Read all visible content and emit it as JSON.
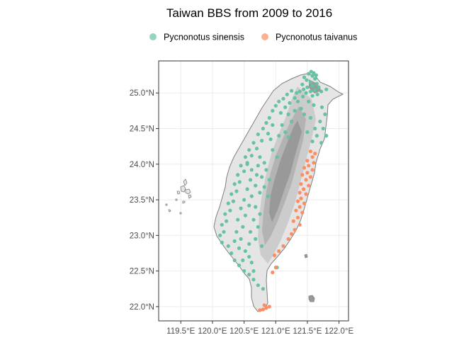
{
  "chart_data": {
    "type": "scatter",
    "title": "Taiwan BBS from 2009 to 2016",
    "xlabel": "",
    "ylabel": "",
    "xlim": [
      119.15,
      122.15
    ],
    "ylim": [
      21.8,
      25.45
    ],
    "x_ticks": [
      119.5,
      120.0,
      120.5,
      121.0,
      121.5,
      122.0
    ],
    "x_tick_labels": [
      "119.5°E",
      "120.0°E",
      "120.5°E",
      "121.0°E",
      "121.5°E",
      "122.0°E"
    ],
    "y_ticks": [
      22.0,
      22.5,
      23.0,
      23.5,
      24.0,
      24.5,
      25.0
    ],
    "y_tick_labels": [
      "22.0°N",
      "22.5°N",
      "23.0°N",
      "23.5°N",
      "24.0°N",
      "24.5°N",
      "25.0°N"
    ],
    "grid": true,
    "legend_position": "top",
    "series": [
      {
        "name": "Pycnonotus sinensis",
        "color": "#66c2a5",
        "points": [
          [
            121.52,
            25.27
          ],
          [
            121.58,
            25.24
          ],
          [
            121.45,
            25.22
          ],
          [
            121.62,
            25.2
          ],
          [
            121.49,
            25.18
          ],
          [
            121.55,
            25.15
          ],
          [
            121.65,
            25.13
          ],
          [
            121.42,
            25.12
          ],
          [
            121.58,
            25.1
          ],
          [
            121.5,
            25.08
          ],
          [
            121.68,
            25.08
          ],
          [
            121.44,
            25.05
          ],
          [
            121.62,
            25.04
          ],
          [
            121.55,
            25.02
          ],
          [
            121.72,
            25.02
          ],
          [
            121.48,
            25.0
          ],
          [
            121.38,
            25.02
          ],
          [
            121.8,
            25.05
          ],
          [
            121.66,
            24.98
          ],
          [
            121.33,
            25.0
          ],
          [
            121.58,
            24.96
          ],
          [
            121.43,
            24.95
          ],
          [
            121.25,
            25.03
          ],
          [
            121.18,
            24.98
          ],
          [
            121.3,
            24.93
          ],
          [
            121.12,
            24.92
          ],
          [
            121.22,
            24.86
          ],
          [
            121.05,
            24.88
          ],
          [
            121.0,
            24.82
          ],
          [
            121.15,
            24.8
          ],
          [
            120.95,
            24.75
          ],
          [
            121.08,
            24.72
          ],
          [
            121.35,
            24.88
          ],
          [
            121.4,
            24.78
          ],
          [
            121.52,
            24.88
          ],
          [
            121.6,
            24.83
          ],
          [
            121.73,
            24.8
          ],
          [
            121.78,
            24.7
          ],
          [
            121.7,
            24.6
          ],
          [
            121.75,
            24.5
          ],
          [
            121.8,
            24.4
          ],
          [
            121.72,
            24.3
          ],
          [
            120.9,
            24.65
          ],
          [
            120.85,
            24.58
          ],
          [
            120.95,
            24.55
          ],
          [
            120.8,
            24.5
          ],
          [
            120.88,
            24.43
          ],
          [
            120.72,
            24.42
          ],
          [
            120.78,
            24.33
          ],
          [
            120.65,
            24.3
          ],
          [
            120.7,
            24.22
          ],
          [
            120.58,
            24.2
          ],
          [
            120.62,
            24.12
          ],
          [
            120.52,
            24.1
          ],
          [
            120.55,
            24.02
          ],
          [
            120.45,
            23.98
          ],
          [
            120.5,
            23.9
          ],
          [
            120.4,
            23.85
          ],
          [
            120.43,
            23.75
          ],
          [
            120.35,
            23.72
          ],
          [
            120.38,
            23.62
          ],
          [
            120.3,
            23.58
          ],
          [
            120.33,
            23.48
          ],
          [
            120.25,
            23.45
          ],
          [
            120.28,
            23.35
          ],
          [
            120.2,
            23.3
          ],
          [
            120.22,
            23.2
          ],
          [
            120.15,
            23.15
          ],
          [
            120.18,
            23.05
          ],
          [
            120.12,
            23.0
          ],
          [
            120.15,
            22.9
          ],
          [
            120.25,
            22.85
          ],
          [
            120.3,
            22.75
          ],
          [
            120.35,
            22.65
          ],
          [
            120.42,
            22.58
          ],
          [
            120.5,
            22.5
          ],
          [
            120.58,
            22.45
          ],
          [
            120.65,
            22.38
          ],
          [
            120.72,
            22.3
          ],
          [
            120.8,
            22.25
          ],
          [
            120.55,
            24.0
          ],
          [
            120.62,
            23.92
          ],
          [
            120.7,
            23.85
          ],
          [
            120.6,
            23.78
          ],
          [
            120.68,
            23.7
          ],
          [
            120.55,
            23.65
          ],
          [
            120.62,
            23.55
          ],
          [
            120.5,
            23.5
          ],
          [
            120.58,
            23.42
          ],
          [
            120.45,
            23.38
          ],
          [
            120.52,
            23.28
          ],
          [
            120.4,
            23.22
          ],
          [
            120.48,
            23.12
          ],
          [
            120.38,
            23.05
          ],
          [
            120.45,
            22.95
          ],
          [
            120.35,
            22.92
          ],
          [
            120.42,
            22.82
          ],
          [
            120.52,
            22.78
          ],
          [
            120.58,
            22.7
          ],
          [
            120.48,
            22.65
          ],
          [
            120.62,
            22.62
          ],
          [
            120.75,
            24.1
          ],
          [
            120.82,
            24.02
          ],
          [
            120.72,
            23.98
          ],
          [
            120.85,
            23.92
          ],
          [
            120.78,
            23.82
          ],
          [
            120.9,
            23.78
          ],
          [
            120.82,
            23.68
          ],
          [
            120.75,
            23.6
          ],
          [
            120.88,
            23.55
          ],
          [
            120.95,
            24.2
          ],
          [
            121.02,
            24.1
          ],
          [
            120.92,
            24.35
          ],
          [
            121.05,
            24.4
          ],
          [
            121.15,
            24.45
          ],
          [
            121.1,
            24.55
          ],
          [
            121.25,
            24.6
          ],
          [
            121.2,
            24.7
          ],
          [
            121.3,
            24.75
          ],
          [
            121.45,
            24.7
          ],
          [
            121.55,
            24.65
          ],
          [
            121.62,
            24.5
          ],
          [
            121.5,
            24.45
          ],
          [
            121.65,
            24.4
          ],
          [
            121.58,
            24.32
          ],
          [
            121.2,
            24.38
          ],
          [
            120.68,
            23.4
          ],
          [
            120.75,
            23.3
          ],
          [
            120.65,
            23.22
          ],
          [
            120.72,
            23.12
          ],
          [
            120.6,
            23.05
          ],
          [
            120.68,
            22.95
          ],
          [
            120.58,
            22.88
          ],
          [
            120.78,
            22.85
          ],
          [
            120.65,
            22.5
          ],
          [
            121.02,
            22.55
          ],
          [
            121.6,
            25.28
          ],
          [
            121.64,
            25.25
          ],
          [
            121.56,
            25.3
          ]
        ]
      },
      {
        "name": "Pycnonotus taivanus",
        "color": "#fc8d62",
        "points": [
          [
            121.55,
            24.18
          ],
          [
            121.62,
            24.15
          ],
          [
            121.58,
            24.1
          ],
          [
            121.5,
            24.05
          ],
          [
            121.6,
            24.02
          ],
          [
            121.52,
            23.98
          ],
          [
            121.45,
            23.95
          ],
          [
            121.58,
            23.92
          ],
          [
            121.5,
            23.88
          ],
          [
            121.42,
            23.85
          ],
          [
            121.55,
            23.82
          ],
          [
            121.48,
            23.78
          ],
          [
            121.4,
            23.72
          ],
          [
            121.52,
            23.7
          ],
          [
            121.44,
            23.65
          ],
          [
            121.38,
            23.6
          ],
          [
            121.48,
            23.58
          ],
          [
            121.4,
            23.52
          ],
          [
            121.35,
            23.48
          ],
          [
            121.45,
            23.45
          ],
          [
            121.38,
            23.4
          ],
          [
            121.32,
            23.35
          ],
          [
            121.42,
            23.32
          ],
          [
            121.35,
            23.25
          ],
          [
            121.28,
            23.2
          ],
          [
            121.38,
            23.15
          ],
          [
            121.3,
            23.08
          ],
          [
            121.25,
            23.02
          ],
          [
            121.2,
            22.95
          ],
          [
            121.12,
            22.85
          ],
          [
            121.05,
            22.78
          ],
          [
            120.98,
            22.72
          ],
          [
            121.0,
            22.55
          ],
          [
            120.95,
            22.48
          ],
          [
            120.9,
            22.0
          ],
          [
            120.85,
            21.98
          ],
          [
            120.8,
            21.96
          ],
          [
            120.75,
            21.95
          ],
          [
            120.82,
            22.02
          ]
        ]
      }
    ]
  },
  "map_layers": {
    "island_outline_color": "#7f7f7f",
    "elevation_colors": [
      "#e5e5e5",
      "#cccccc",
      "#b3b3b3",
      "#999999"
    ]
  }
}
